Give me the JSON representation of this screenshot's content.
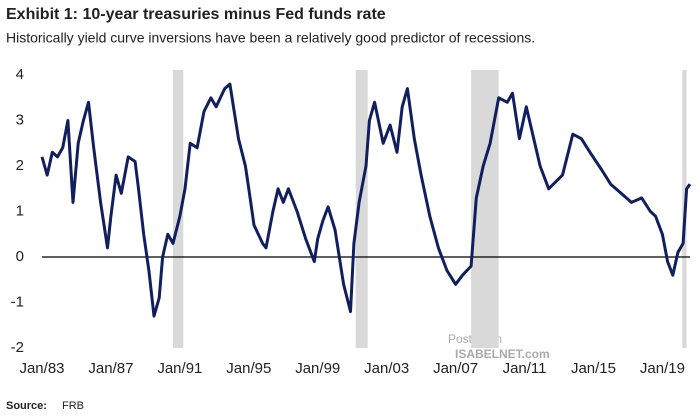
{
  "chart_data": {
    "type": "line",
    "title": "Exhibit 1: 10-year treasuries minus Fed funds rate",
    "subtitle": "Historically yield curve inversions have been a relatively good predictor of recessions.",
    "source_label": "Source:",
    "source": "FRB",
    "watermark": [
      "Posted on",
      "ISABELNET.com"
    ],
    "color": "#111f5e",
    "recession_color": "#d9d9d9",
    "recessions": [
      [
        1990.6,
        1991.2
      ],
      [
        2001.2,
        2001.9
      ],
      [
        2007.9,
        2009.5
      ],
      [
        2020.15,
        2020.4
      ]
    ],
    "x": [
      1983.0,
      1983.3,
      1983.6,
      1983.9,
      1984.2,
      1984.5,
      1984.8,
      1985.1,
      1985.4,
      1985.7,
      1986.0,
      1986.4,
      1986.8,
      1987.0,
      1987.3,
      1987.6,
      1988.0,
      1988.4,
      1988.6,
      1988.9,
      1989.2,
      1989.5,
      1989.8,
      1990.0,
      1990.3,
      1990.6,
      1991.0,
      1991.3,
      1991.6,
      1992.0,
      1992.4,
      1992.8,
      1993.1,
      1993.6,
      1993.9,
      1994.4,
      1994.8,
      1995.0,
      1995.3,
      1995.8,
      1996.0,
      1996.4,
      1996.7,
      1997.0,
      1997.3,
      1997.8,
      1998.3,
      1998.8,
      1999.0,
      1999.3,
      1999.6,
      2000.0,
      2000.5,
      2000.9,
      2001.1,
      2001.4,
      2001.8,
      2002.0,
      2002.3,
      2002.8,
      2003.2,
      2003.6,
      2003.9,
      2004.2,
      2004.6,
      2005.0,
      2005.5,
      2006.0,
      2006.5,
      2007.0,
      2007.4,
      2007.9,
      2008.2,
      2008.6,
      2009.0,
      2009.5,
      2010.0,
      2010.3,
      2010.7,
      2011.1,
      2011.9,
      2012.4,
      2013.2,
      2013.8,
      2014.3,
      2014.8,
      2015.5,
      2016.0,
      2016.6,
      2017.2,
      2017.8,
      2018.3,
      2018.6,
      2019.0,
      2019.3,
      2019.6,
      2019.9,
      2020.2,
      2020.4,
      2020.6
    ],
    "values": [
      2.2,
      1.8,
      2.3,
      2.2,
      2.4,
      3.0,
      1.2,
      2.5,
      3.0,
      3.4,
      2.4,
      1.2,
      0.2,
      0.9,
      1.8,
      1.4,
      2.2,
      2.1,
      1.5,
      0.5,
      -0.3,
      -1.3,
      -0.9,
      0.0,
      0.5,
      0.3,
      0.9,
      1.5,
      2.5,
      2.4,
      3.2,
      3.5,
      3.3,
      3.7,
      3.8,
      2.6,
      2.0,
      1.5,
      0.7,
      0.3,
      0.2,
      1.0,
      1.5,
      1.2,
      1.5,
      1.0,
      0.4,
      -0.1,
      0.4,
      0.8,
      1.1,
      0.6,
      -0.6,
      -1.2,
      0.3,
      1.2,
      2.0,
      3.0,
      3.4,
      2.5,
      2.9,
      2.3,
      3.3,
      3.7,
      2.6,
      1.8,
      0.9,
      0.2,
      -0.3,
      -0.6,
      -0.4,
      -0.2,
      1.3,
      2.0,
      2.5,
      3.5,
      3.4,
      3.6,
      2.6,
      3.3,
      2.0,
      1.5,
      1.8,
      2.7,
      2.6,
      2.3,
      1.9,
      1.6,
      1.4,
      1.2,
      1.3,
      1.0,
      0.9,
      0.5,
      -0.1,
      -0.4,
      0.1,
      0.3,
      1.5,
      1.6
    ],
    "xlim": [
      1983.0,
      2020.6
    ],
    "xticks": [
      {
        "value": 1983,
        "label": "Jan/83"
      },
      {
        "value": 1987,
        "label": "Jan/87"
      },
      {
        "value": 1991,
        "label": "Jan/91"
      },
      {
        "value": 1995,
        "label": "Jan/95"
      },
      {
        "value": 1999,
        "label": "Jan/99"
      },
      {
        "value": 2003,
        "label": "Jan/03"
      },
      {
        "value": 2007,
        "label": "Jan/07"
      },
      {
        "value": 2011,
        "label": "Jan/11"
      },
      {
        "value": 2015,
        "label": "Jan/15"
      },
      {
        "value": 2019,
        "label": "Jan/19"
      }
    ],
    "ylim": [
      -2,
      4
    ],
    "yticks": [
      -2,
      -1,
      0,
      1,
      2,
      3,
      4
    ],
    "grid": false
  }
}
